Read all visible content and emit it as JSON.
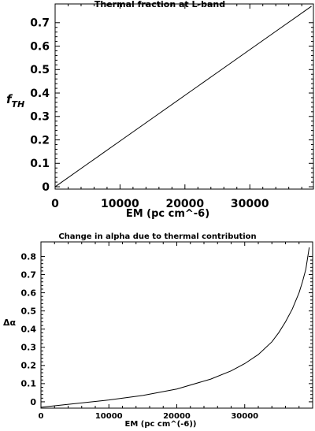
{
  "chart_data": [
    {
      "type": "line",
      "title": "Thermal fraction at L-band",
      "xlabel": "EM (pc cm^-6)",
      "ylabel_main": "f",
      "ylabel_sub": "TH",
      "xlim": [
        0,
        39800
      ],
      "ylim": [
        -0.01,
        0.78
      ],
      "xticks": [
        0,
        10000,
        20000,
        30000
      ],
      "yticks": [
        0,
        0.1,
        0.2,
        0.3,
        0.4,
        0.5,
        0.6,
        0.7
      ],
      "xtick_labels": [
        "0",
        "10000",
        "20000",
        "30000"
      ],
      "ytick_labels": [
        "0",
        "0.1",
        "0.2",
        "0.3",
        "0.4",
        "0.5",
        "0.6",
        "0.7"
      ],
      "series": [
        {
          "x": [
            0,
            5000,
            10000,
            15000,
            20000,
            25000,
            30000,
            35000,
            39500
          ],
          "y": [
            0,
            0.0975,
            0.195,
            0.2925,
            0.39,
            0.4875,
            0.585,
            0.6825,
            0.77
          ]
        }
      ]
    },
    {
      "type": "line",
      "title": "Change in alpha due to thermal contribution",
      "xlabel": "EM (pc cm^(-6))",
      "ylabel": "Δα",
      "xlim": [
        0,
        40000
      ],
      "ylim": [
        -0.035,
        0.88
      ],
      "xticks": [
        0,
        10000,
        20000,
        30000
      ],
      "yticks": [
        0,
        0.1,
        0.2,
        0.3,
        0.4,
        0.5,
        0.6,
        0.7,
        0.8
      ],
      "xtick_labels": [
        "0",
        "10000",
        "20000",
        "30000"
      ],
      "ytick_labels": [
        "0",
        "0.1",
        "0.2",
        "0.3",
        "0.4",
        "0.5",
        "0.6",
        "0.7",
        "0.8"
      ],
      "series": [
        {
          "x": [
            0,
            5000,
            10000,
            15000,
            20000,
            25000,
            28000,
            30000,
            32000,
            34000,
            35000,
            36000,
            37000,
            38000,
            38500,
            39000,
            39500
          ],
          "y": [
            -0.03,
            -0.01,
            0.01,
            0.035,
            0.07,
            0.125,
            0.17,
            0.21,
            0.26,
            0.33,
            0.38,
            0.44,
            0.51,
            0.6,
            0.66,
            0.73,
            0.85
          ]
        }
      ]
    }
  ]
}
